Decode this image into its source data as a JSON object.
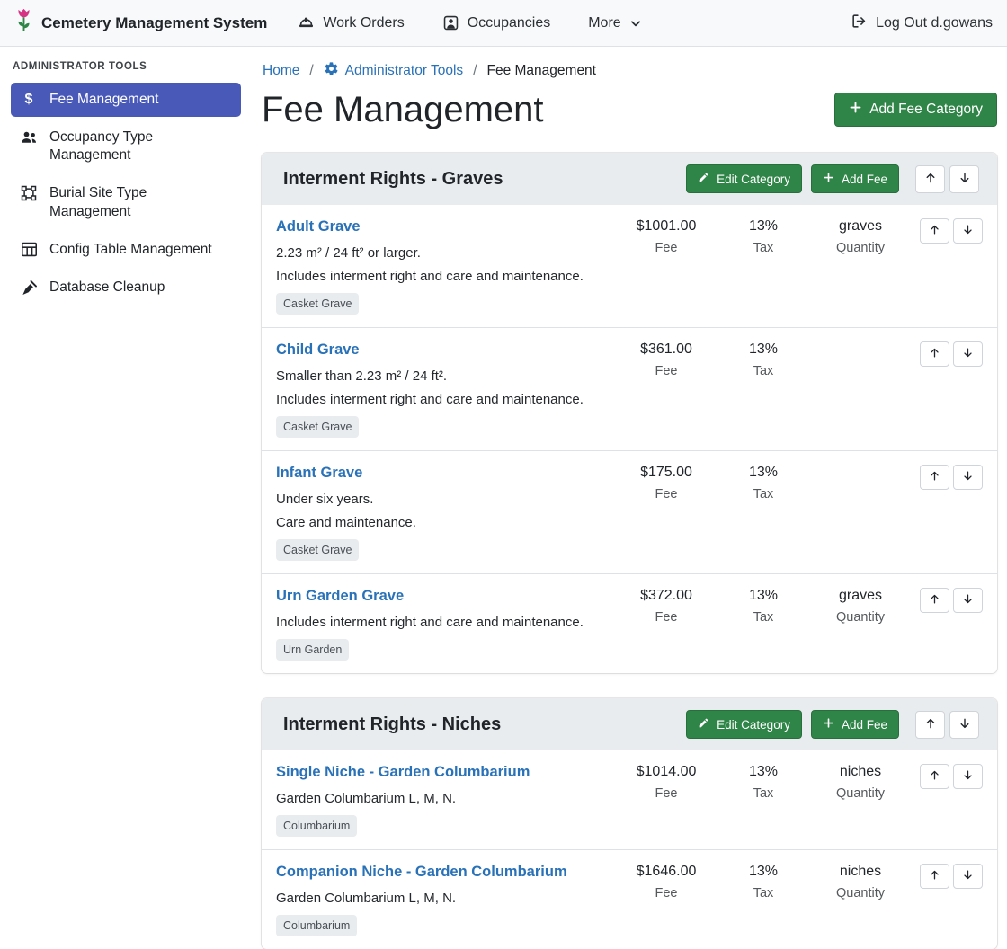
{
  "navbar": {
    "brand": "Cemetery Management System",
    "items": [
      {
        "label": "Work Orders",
        "icon": "hard-hat-icon"
      },
      {
        "label": "Occupancies",
        "icon": "occupant-icon"
      },
      {
        "label": "More",
        "icon": "chevron-down-icon"
      }
    ],
    "logout": "Log Out d.gowans"
  },
  "sidebar": {
    "heading": "ADMINISTRATOR TOOLS",
    "items": [
      {
        "label": "Fee Management",
        "icon": "dollar-icon",
        "active": true
      },
      {
        "label": "Occupancy Type Management",
        "icon": "users-icon",
        "active": false
      },
      {
        "label": "Burial Site Type Management",
        "icon": "vector-square-icon",
        "active": false
      },
      {
        "label": "Config Table Management",
        "icon": "table-icon",
        "active": false
      },
      {
        "label": "Database Cleanup",
        "icon": "broom-icon",
        "active": false
      }
    ]
  },
  "breadcrumb": {
    "home": "Home",
    "admin": "Administrator Tools",
    "current": "Fee Management",
    "separator": "/"
  },
  "page": {
    "title": "Fee Management",
    "add_category_label": "Add Fee Category"
  },
  "buttons": {
    "edit_category": "Edit Category",
    "add_fee": "Add Fee"
  },
  "labels": {
    "fee": "Fee",
    "tax": "Tax",
    "quantity": "Quantity"
  },
  "categories": [
    {
      "title": "Interment Rights - Graves",
      "fees": [
        {
          "name": "Adult Grave",
          "fee": "$1001.00",
          "tax": "13%",
          "quantity": "graves",
          "descriptions": [
            "2.23 m² / 24 ft² or larger.",
            "Includes interment right and care and maintenance."
          ],
          "badge": "Casket Grave"
        },
        {
          "name": "Child Grave",
          "fee": "$361.00",
          "tax": "13%",
          "quantity": "",
          "descriptions": [
            "Smaller than 2.23 m² / 24 ft².",
            "Includes interment right and care and maintenance."
          ],
          "badge": "Casket Grave"
        },
        {
          "name": "Infant Grave",
          "fee": "$175.00",
          "tax": "13%",
          "quantity": "",
          "descriptions": [
            "Under six years.",
            "Care and maintenance."
          ],
          "badge": "Casket Grave"
        },
        {
          "name": "Urn Garden Grave",
          "fee": "$372.00",
          "tax": "13%",
          "quantity": "graves",
          "descriptions": [
            "Includes interment right and care and maintenance."
          ],
          "badge": "Urn Garden"
        }
      ]
    },
    {
      "title": "Interment Rights - Niches",
      "fees": [
        {
          "name": "Single Niche - Garden Columbarium",
          "fee": "$1014.00",
          "tax": "13%",
          "quantity": "niches",
          "descriptions": [
            "Garden Columbarium L, M, N."
          ],
          "badge": "Columbarium"
        },
        {
          "name": "Companion Niche - Garden Columbarium",
          "fee": "$1646.00",
          "tax": "13%",
          "quantity": "niches",
          "descriptions": [
            "Garden Columbarium L, M, N."
          ],
          "badge": "Columbarium"
        }
      ]
    }
  ],
  "colors": {
    "primary": "#4959b8",
    "link": "#2a72b8",
    "success": "#2f8547"
  }
}
